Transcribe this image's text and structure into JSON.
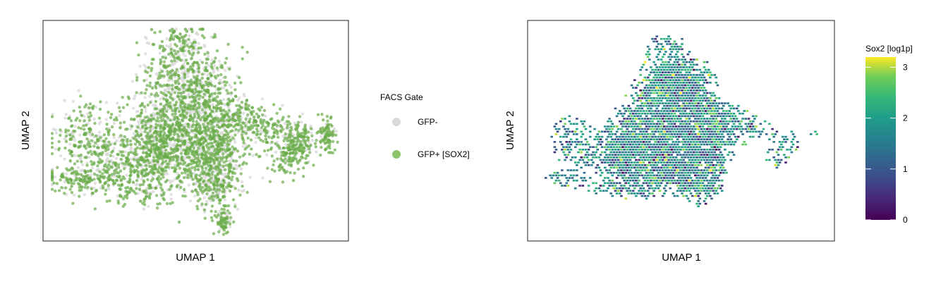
{
  "chart_data": [
    {
      "type": "scatter",
      "xlabel": "UMAP 1",
      "ylabel": "UMAP 2",
      "legend": {
        "title": "FACS Gate",
        "placement": "right",
        "entries": [
          {
            "label": "GFP-",
            "color": "#d9d9d9"
          },
          {
            "label": "GFP+ [SOX2]",
            "color": "#8cc46e"
          }
        ]
      },
      "series": [
        {
          "name": "GFP-",
          "color": "#d9d9d9",
          "alpha": 0.8
        },
        {
          "name": "GFP+ [SOX2]",
          "color": "#6aac48",
          "alpha": 0.7
        }
      ],
      "axes_ticks_shown": false,
      "grid": false
    },
    {
      "type": "heatmap",
      "xlabel": "UMAP 1",
      "ylabel": "UMAP 2",
      "colorbar": {
        "title": "Sox2 [log1p]",
        "colormap": "viridis",
        "range": [
          0,
          3.2
        ],
        "ticks": [
          0,
          1,
          2,
          3
        ],
        "tick_labels": [
          "0",
          "1",
          "2",
          "3"
        ],
        "placement": "right"
      },
      "axes_ticks_shown": false,
      "grid": false
    }
  ]
}
